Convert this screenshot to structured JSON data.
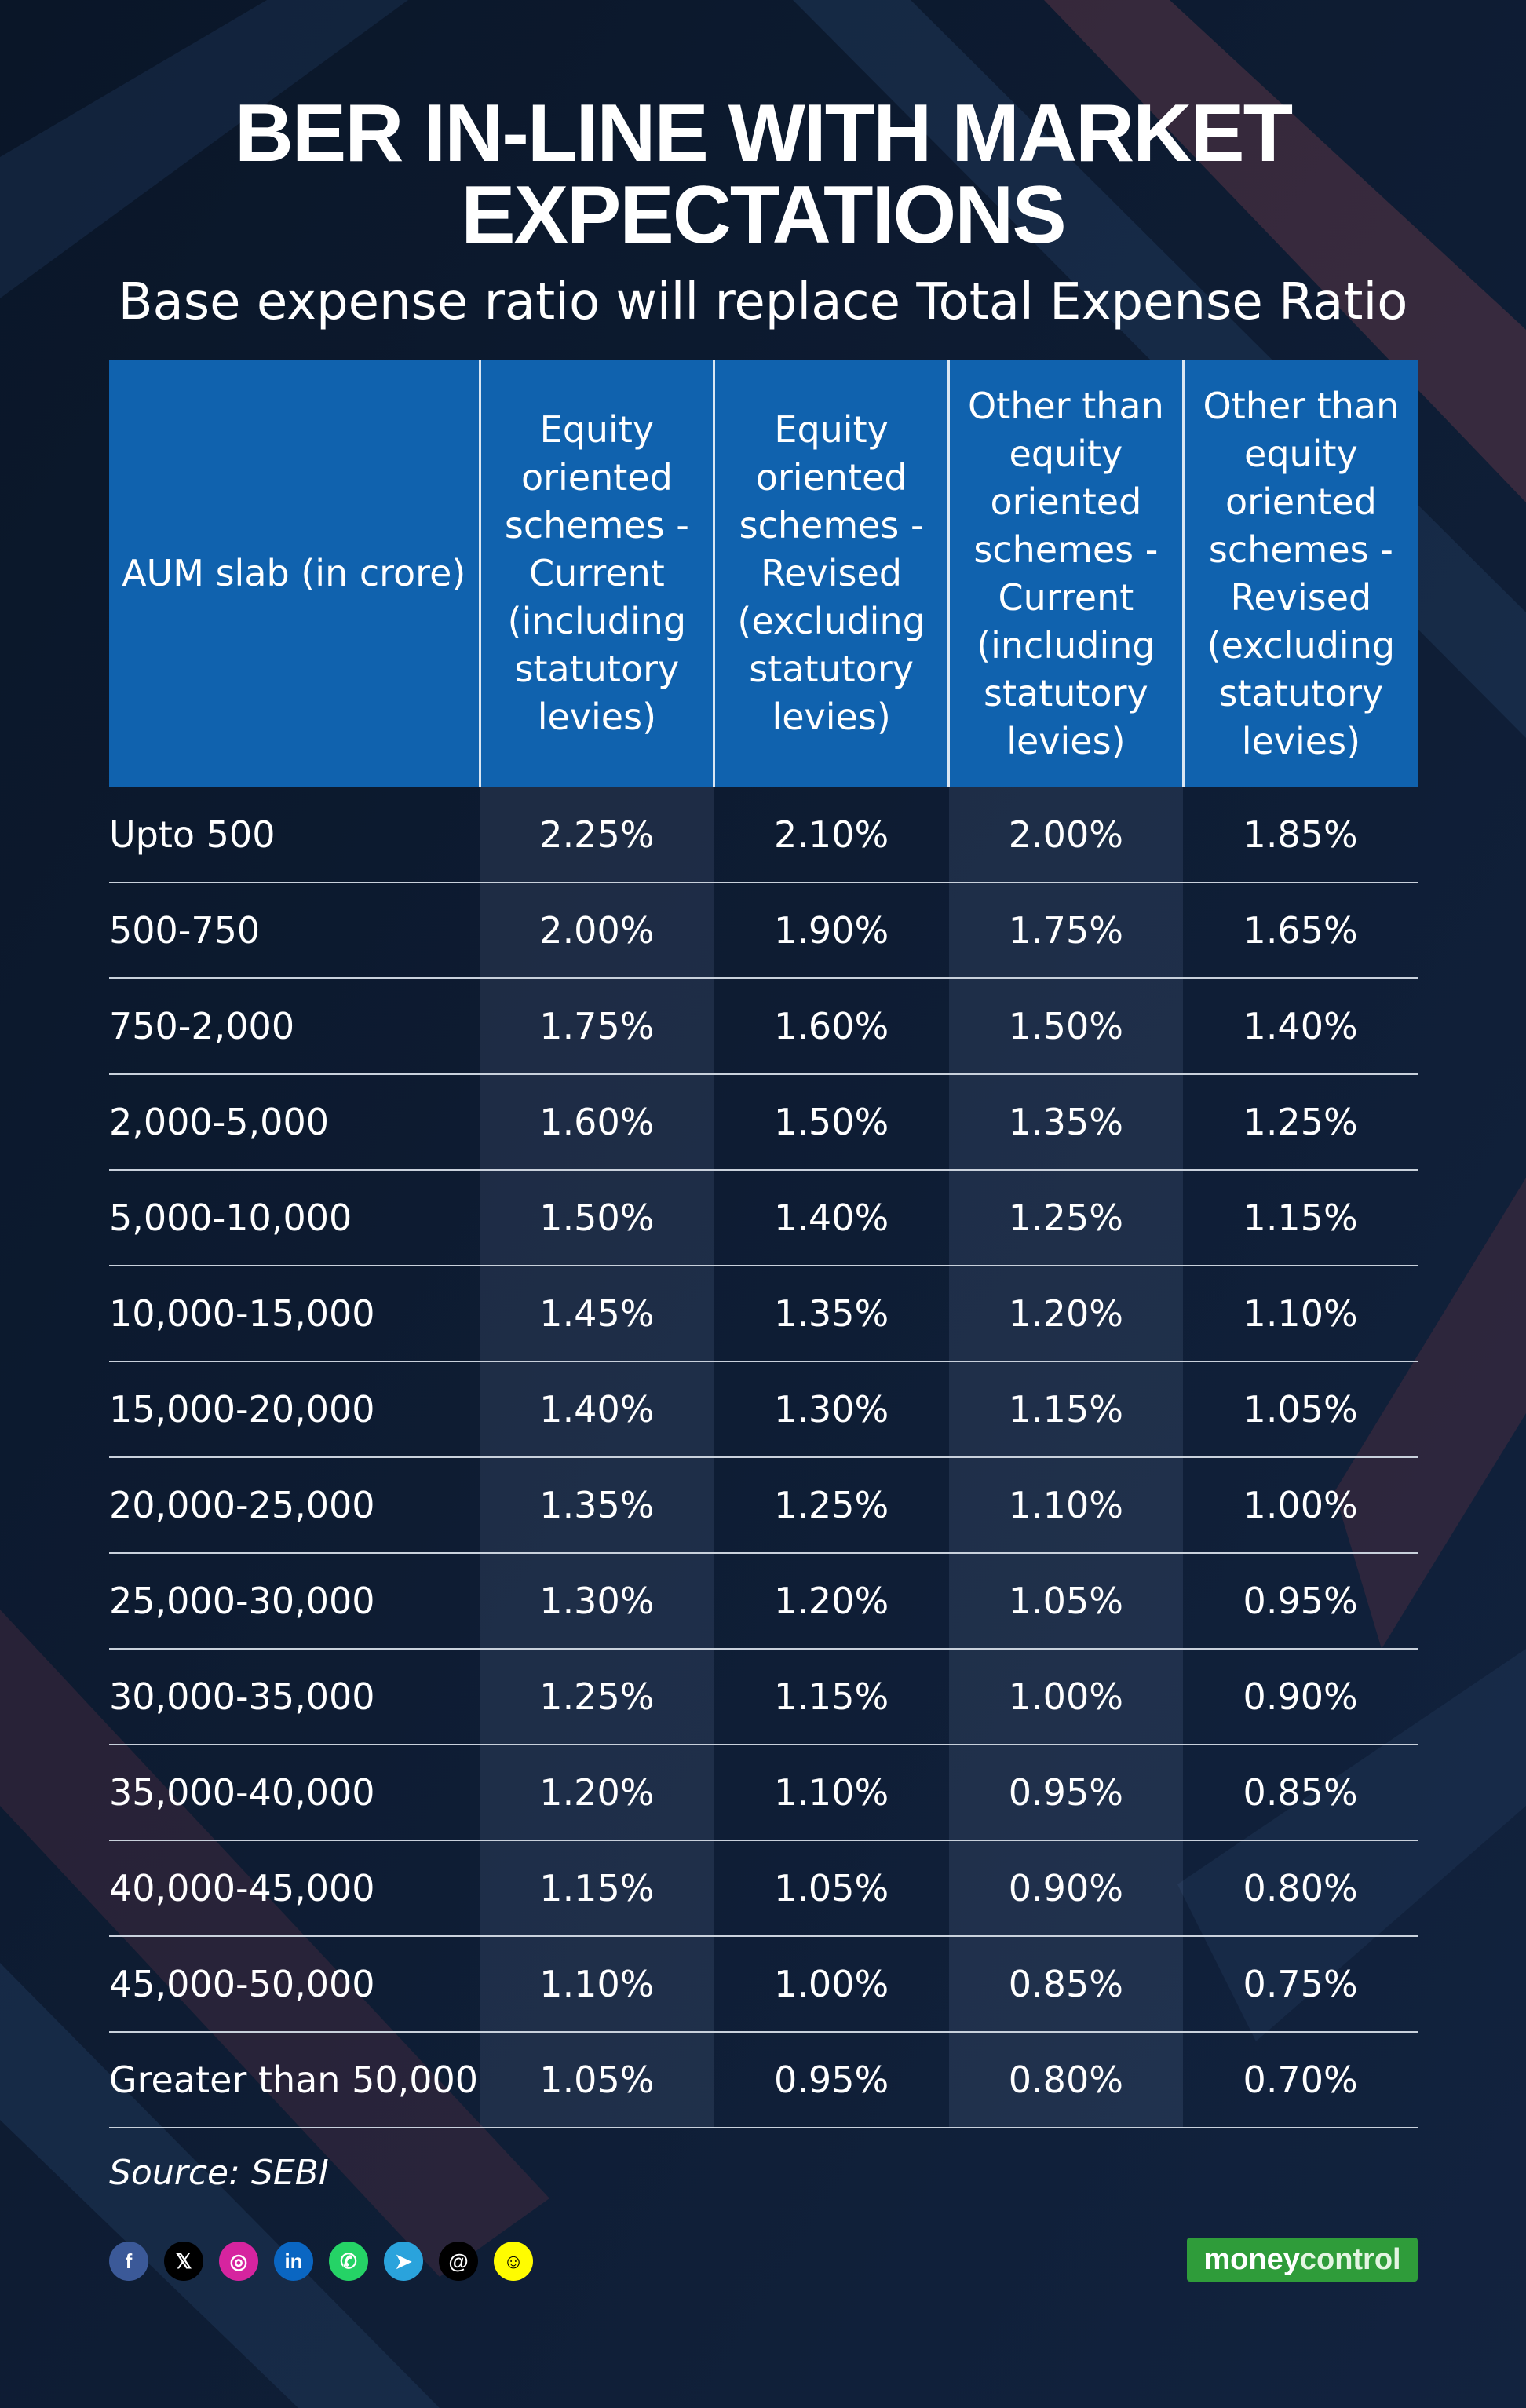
{
  "title": "BER IN-LINE WITH MARKET EXPECTATIONS",
  "subtitle": "Base expense ratio will replace Total Expense Ratio",
  "table": {
    "headers": [
      "AUM slab (in crore)",
      "Equity oriented schemes - Current (including statutory levies)",
      "Equity oriented schemes - Revised (excluding statutory levies)",
      "Other than equity oriented schemes - Current (including statutory levies)",
      "Other than equity oriented schemes - Revised (excluding statutory levies)"
    ],
    "rows": [
      [
        "Upto 500",
        "2.25%",
        "2.10%",
        "2.00%",
        "1.85%"
      ],
      [
        "500-750",
        "2.00%",
        "1.90%",
        "1.75%",
        "1.65%"
      ],
      [
        "750-2,000",
        "1.75%",
        "1.60%",
        "1.50%",
        "1.40%"
      ],
      [
        "2,000-5,000",
        "1.60%",
        "1.50%",
        "1.35%",
        "1.25%"
      ],
      [
        "5,000-10,000",
        "1.50%",
        "1.40%",
        "1.25%",
        "1.15%"
      ],
      [
        "10,000-15,000",
        "1.45%",
        "1.35%",
        "1.20%",
        "1.10%"
      ],
      [
        "15,000-20,000",
        "1.40%",
        "1.30%",
        "1.15%",
        "1.05%"
      ],
      [
        "20,000-25,000",
        "1.35%",
        "1.25%",
        "1.10%",
        "1.00%"
      ],
      [
        "25,000-30,000",
        "1.30%",
        "1.20%",
        "1.05%",
        "0.95%"
      ],
      [
        "30,000-35,000",
        "1.25%",
        "1.15%",
        "1.00%",
        "0.90%"
      ],
      [
        "35,000-40,000",
        "1.20%",
        "1.10%",
        "0.95%",
        "0.85%"
      ],
      [
        "40,000-45,000",
        "1.15%",
        "1.05%",
        "0.90%",
        "0.80%"
      ],
      [
        "45,000-50,000",
        "1.10%",
        "1.00%",
        "0.85%",
        "0.75%"
      ],
      [
        "Greater than 50,000",
        "1.05%",
        "0.95%",
        "0.80%",
        "0.70%"
      ]
    ]
  },
  "source": "Source: SEBI",
  "social_icons": [
    {
      "name": "facebook-icon",
      "glyph": "f",
      "color": "#3b5998"
    },
    {
      "name": "x-icon",
      "glyph": "𝕏",
      "color": "#000000"
    },
    {
      "name": "instagram-icon",
      "glyph": "◎",
      "color": "#d6249f"
    },
    {
      "name": "linkedin-icon",
      "glyph": "in",
      "color": "#0a66c2"
    },
    {
      "name": "whatsapp-icon",
      "glyph": "✆",
      "color": "#25d366"
    },
    {
      "name": "telegram-icon",
      "glyph": "➤",
      "color": "#2aa3dc"
    },
    {
      "name": "threads-icon",
      "glyph": "@",
      "color": "#000000"
    },
    {
      "name": "snapchat-icon",
      "glyph": "☺",
      "color": "#fffc00"
    }
  ],
  "logo": {
    "part1": "money",
    "part2": "control",
    "color": "#2f9c3a"
  }
}
